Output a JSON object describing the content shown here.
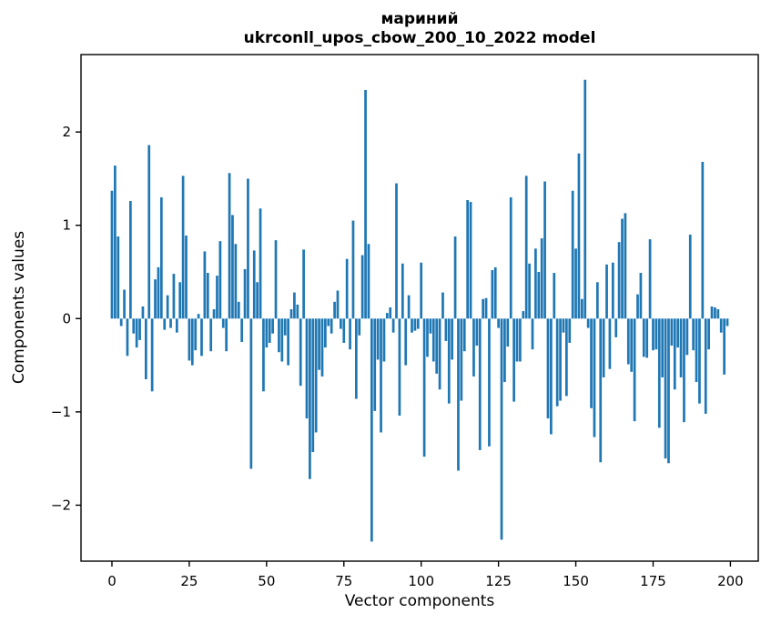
{
  "figure": {
    "title_line1": "мариний",
    "title_line2": "ukrconll_upos_cbow_200_10_2022 model"
  },
  "chart_data": {
    "type": "bar",
    "title": "мариний\nukrconll_upos_cbow_200_10_2022 model",
    "xlabel": "Vector components",
    "ylabel": "Components values",
    "xlim": [
      -10,
      209
    ],
    "ylim": [
      -2.6,
      2.83
    ],
    "xticks": [
      0,
      25,
      50,
      75,
      100,
      125,
      150,
      175,
      200
    ],
    "xtick_labels": [
      "0",
      "25",
      "50",
      "75",
      "100",
      "125",
      "150",
      "175",
      "200"
    ],
    "yticks": [
      2,
      1,
      0,
      -1,
      -2
    ],
    "ytick_labels": [
      "2",
      "1",
      "0",
      "−1",
      "−2"
    ],
    "grid": false,
    "legend": null,
    "bar_color": "#1f77b4",
    "axis_color": "#000000",
    "bar_width_data_units": 0.8,
    "n_components": 200,
    "values": [
      1.37,
      1.64,
      0.88,
      -0.08,
      0.31,
      -0.4,
      1.26,
      -0.16,
      -0.31,
      -0.23,
      0.13,
      -0.65,
      1.86,
      -0.78,
      0.42,
      0.55,
      1.3,
      -0.12,
      0.25,
      -0.1,
      0.48,
      -0.15,
      0.39,
      1.53,
      0.89,
      -0.45,
      -0.5,
      -0.34,
      0.05,
      -0.4,
      0.72,
      0.49,
      -0.35,
      0.1,
      0.46,
      0.83,
      -0.1,
      -0.35,
      1.56,
      1.11,
      0.8,
      0.18,
      -0.25,
      0.53,
      1.5,
      -1.61,
      0.73,
      0.39,
      1.18,
      -0.78,
      -0.31,
      -0.26,
      -0.16,
      0.84,
      -0.36,
      -0.46,
      -0.18,
      -0.5,
      0.1,
      0.28,
      0.15,
      -0.72,
      0.74,
      -1.07,
      -1.72,
      -1.43,
      -1.22,
      -0.55,
      -0.62,
      -0.31,
      -0.08,
      -0.16,
      0.18,
      0.3,
      -0.11,
      -0.26,
      0.64,
      -0.33,
      1.05,
      -0.86,
      -0.18,
      0.68,
      2.45,
      0.8,
      -2.39,
      -0.99,
      -0.44,
      -1.22,
      -0.46,
      0.06,
      0.12,
      -0.15,
      1.45,
      -1.04,
      0.59,
      -0.5,
      0.25,
      -0.15,
      -0.13,
      -0.11,
      0.6,
      -1.48,
      -0.41,
      -0.16,
      -0.46,
      -0.59,
      -0.76,
      0.28,
      -0.24,
      -0.91,
      -0.44,
      0.88,
      -1.63,
      -0.88,
      -0.35,
      1.27,
      1.25,
      -0.62,
      -0.29,
      -1.41,
      0.21,
      0.22,
      -1.37,
      0.52,
      0.55,
      -0.1,
      -2.37,
      -0.68,
      -0.3,
      1.3,
      -0.89,
      -0.46,
      -0.46,
      0.08,
      1.53,
      0.59,
      -0.33,
      0.75,
      0.5,
      0.86,
      1.47,
      -1.07,
      -1.24,
      0.49,
      -0.94,
      -0.88,
      -0.15,
      -0.83,
      -0.26,
      1.37,
      0.75,
      1.77,
      0.21,
      2.56,
      -0.1,
      -0.96,
      -1.27,
      0.39,
      -1.54,
      -0.63,
      0.58,
      -0.54,
      0.6,
      -0.2,
      0.82,
      1.07,
      1.13,
      -0.49,
      -0.57,
      -1.1,
      0.26,
      0.49,
      -0.41,
      -0.42,
      0.85,
      -0.34,
      -0.33,
      -1.17,
      -0.63,
      -1.5,
      -1.55,
      -0.29,
      -0.76,
      -0.31,
      -0.63,
      -1.11,
      -0.39,
      0.9,
      -0.34,
      -0.68,
      -0.91,
      1.68,
      -1.02,
      -0.33,
      0.13,
      0.12,
      0.1,
      -0.15,
      -0.6,
      -0.08
    ]
  }
}
